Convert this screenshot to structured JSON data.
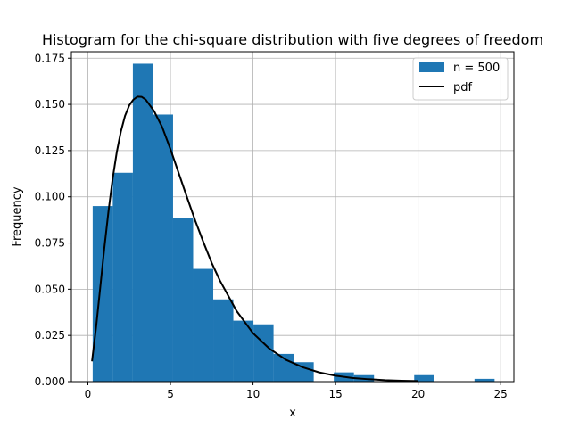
{
  "chart_data": {
    "type": "bar",
    "title": "Histogram for the chi-square distribution with five degrees of freedom",
    "xlabel": "x",
    "ylabel": "Frequency",
    "xlim": [
      -1.0,
      25.8
    ],
    "ylim": [
      0.0,
      0.1785
    ],
    "grid": true,
    "legend_position": "top-right",
    "x_ticks": [
      0,
      5,
      10,
      15,
      20,
      25
    ],
    "y_ticks": [
      0.0,
      0.025,
      0.05,
      0.075,
      0.1,
      0.125,
      0.15,
      0.175
    ],
    "x_tick_labels": [
      "0",
      "5",
      "10",
      "15",
      "20",
      "25"
    ],
    "y_tick_labels": [
      "0.000",
      "0.025",
      "0.050",
      "0.075",
      "0.100",
      "0.125",
      "0.150",
      "0.175"
    ],
    "bin_width": 1.217,
    "bin_edges": [
      0.29,
      1.507,
      2.724,
      3.941,
      5.158,
      6.375,
      7.592,
      8.809,
      10.026,
      11.243,
      12.46,
      13.677,
      14.894,
      16.111,
      17.328,
      18.545,
      19.762,
      20.979,
      22.196,
      23.413,
      24.63
    ],
    "series": [
      {
        "name": "n = 500",
        "kind": "histogram",
        "color": "#1f77b4",
        "values": [
          0.095,
          0.113,
          0.172,
          0.1445,
          0.0885,
          0.061,
          0.0445,
          0.033,
          0.031,
          0.015,
          0.0105,
          0.0,
          0.005,
          0.0035,
          0.0,
          0.0,
          0.0035,
          0.0,
          0.0,
          0.0015
        ]
      },
      {
        "name": "pdf",
        "kind": "line",
        "color": "#000000",
        "x": [
          0.25,
          0.5,
          0.75,
          1.0,
          1.25,
          1.5,
          1.75,
          2.0,
          2.25,
          2.5,
          2.75,
          3.0,
          3.25,
          3.5,
          4.0,
          4.5,
          5.0,
          5.5,
          6.0,
          6.5,
          7.0,
          7.5,
          8.0,
          9.0,
          10.0,
          11.0,
          12.0,
          13.0,
          14.0,
          15.0,
          16.0,
          17.0,
          18.0,
          19.0,
          20.0
        ],
        "y": [
          0.011,
          0.0297,
          0.0511,
          0.0726,
          0.0924,
          0.1098,
          0.1242,
          0.1354,
          0.1438,
          0.1494,
          0.1525,
          0.1542,
          0.1541,
          0.1526,
          0.1465,
          0.1377,
          0.1258,
          0.1128,
          0.0998,
          0.0871,
          0.0754,
          0.0642,
          0.0546,
          0.0383,
          0.0262,
          0.0178,
          0.0118,
          0.0078,
          0.005,
          0.0032,
          0.002,
          0.0013,
          0.0008,
          0.0005,
          0.0003
        ]
      }
    ]
  }
}
